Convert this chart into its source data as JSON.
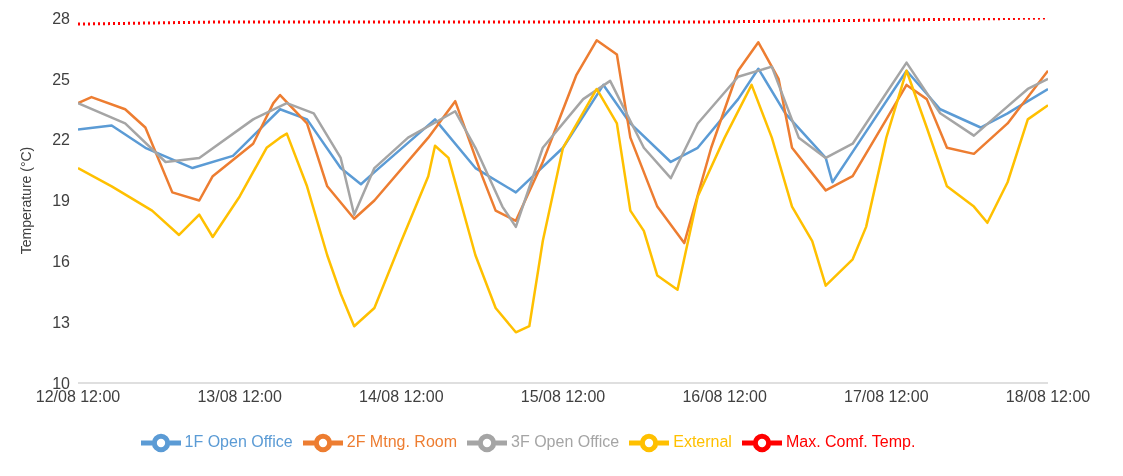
{
  "chart_data": {
    "type": "line",
    "ylabel": "Temperature (°C)",
    "xlim": [
      "--08-12T12:00",
      "--08-18T12:00"
    ],
    "xticks": [
      {
        "value": "--08-12T12:00",
        "label": "12/08 12:00"
      },
      {
        "value": "--08-13T12:00",
        "label": "13/08 12:00"
      },
      {
        "value": "--08-14T12:00",
        "label": "14/08 12:00"
      },
      {
        "value": "--08-15T12:00",
        "label": "15/08 12:00"
      },
      {
        "value": "--08-16T12:00",
        "label": "16/08 12:00"
      },
      {
        "value": "--08-17T12:00",
        "label": "17/08 12:00"
      },
      {
        "value": "--08-18T12:00",
        "label": "18/08 12:00"
      }
    ],
    "ylim": [
      10,
      28
    ],
    "yticks": [
      10,
      13,
      16,
      19,
      22,
      25,
      28
    ],
    "grid": false,
    "legend": "bottom",
    "series": [
      {
        "name": "1F Open Office",
        "color": "#5b9bd5",
        "x": [
          "--08-12T12:00",
          "--08-12T17:00",
          "--08-12T22:00",
          "--08-13T05:00",
          "--08-13T11:00",
          "--08-13T18:00",
          "--08-13T22:00",
          "--08-14T03:00",
          "--08-14T06:00",
          "--08-14T08:00",
          "--08-14T17:00",
          "--08-14T23:00",
          "--08-15T05:00",
          "--08-15T12:00",
          "--08-15T18:00",
          "--08-15T22:00",
          "--08-16T04:00",
          "--08-16T08:00",
          "--08-16T14:00",
          "--08-16T17:00",
          "--08-16T21:00",
          "--08-17T03:00",
          "--08-17T04:00",
          "--08-17T07:00",
          "--08-17T15:00",
          "--08-17T20:00",
          "--08-18T02:00",
          "--08-18T06:00",
          "--08-18T12:00"
        ],
        "values": [
          22.5,
          22.7,
          21.6,
          20.6,
          21.2,
          23.5,
          23.0,
          20.6,
          19.8,
          20.4,
          23.0,
          20.6,
          19.4,
          21.6,
          24.7,
          22.8,
          20.9,
          21.6,
          24.0,
          25.5,
          23.3,
          21.1,
          19.9,
          21.4,
          25.4,
          23.5,
          22.6,
          23.3,
          24.5
        ]
      },
      {
        "name": "2F Mtng. Room",
        "color": "#ed7d31",
        "x": [
          "--08-12T12:00",
          "--08-12T14:00",
          "--08-12T19:00",
          "--08-12T22:00",
          "--08-13T02:00",
          "--08-13T06:00",
          "--08-13T08:00",
          "--08-13T14:00",
          "--08-13T17:00",
          "--08-13T18:00",
          "--08-13T22:00",
          "--08-14T01:00",
          "--08-14T05:00",
          "--08-14T08:00",
          "--08-14T16:00",
          "--08-14T20:00",
          "--08-15T00:00",
          "--08-15T02:00",
          "--08-15T05:00",
          "--08-15T09:00",
          "--08-15T14:00",
          "--08-15T17:00",
          "--08-15T20:00",
          "--08-15T22:00",
          "--08-16T02:00",
          "--08-16T06:00",
          "--08-16T10:00",
          "--08-16T14:00",
          "--08-16T17:00",
          "--08-16T20:00",
          "--08-16T22:00",
          "--08-17T03:00",
          "--08-17T07:00",
          "--08-17T12:00",
          "--08-17T15:00",
          "--08-17T18:00",
          "--08-17T21:00",
          "--08-18T01:00",
          "--08-18T06:00",
          "--08-18T12:00"
        ],
        "values": [
          23.8,
          24.1,
          23.5,
          22.6,
          19.4,
          19.0,
          20.2,
          21.8,
          23.8,
          24.2,
          22.8,
          19.7,
          18.1,
          19.0,
          22.1,
          23.9,
          20.2,
          18.5,
          18.0,
          20.9,
          25.2,
          26.9,
          26.2,
          22.1,
          18.7,
          16.9,
          21.6,
          25.4,
          26.8,
          25.0,
          21.6,
          19.5,
          20.2,
          23.0,
          24.7,
          24.0,
          21.6,
          21.3,
          22.8,
          25.4
        ]
      },
      {
        "name": "3F Open  Office",
        "color": "#a5a5a5",
        "x": [
          "--08-12T12:00",
          "--08-12T19:00",
          "--08-13T01:00",
          "--08-13T06:00",
          "--08-13T14:00",
          "--08-13T19:00",
          "--08-13T23:00",
          "--08-14T03:00",
          "--08-14T05:00",
          "--08-14T08:00",
          "--08-14T13:00",
          "--08-14T20:00",
          "--08-14T23:00",
          "--08-15T03:00",
          "--08-15T05:00",
          "--08-15T09:00",
          "--08-15T15:00",
          "--08-15T19:00",
          "--08-16T00:00",
          "--08-16T04:00",
          "--08-16T08:00",
          "--08-16T14:00",
          "--08-16T19:00",
          "--08-16T23:00",
          "--08-17T03:00",
          "--08-17T07:00",
          "--08-17T12:00",
          "--08-17T15:00",
          "--08-17T20:00",
          "--08-18T01:00",
          "--08-18T09:00",
          "--08-18T12:00"
        ],
        "values": [
          23.8,
          22.8,
          20.9,
          21.1,
          23.0,
          23.8,
          23.3,
          21.1,
          18.3,
          20.6,
          22.1,
          23.4,
          21.6,
          18.7,
          17.7,
          21.6,
          24.0,
          24.9,
          21.6,
          20.1,
          22.8,
          25.1,
          25.6,
          22.1,
          21.1,
          21.8,
          24.3,
          25.8,
          23.3,
          22.2,
          24.5,
          25.0
        ]
      },
      {
        "name": "External",
        "color": "#ffc000",
        "x": [
          "--08-12T12:00",
          "--08-12T17:00",
          "--08-12T23:00",
          "--08-13T03:00",
          "--08-13T06:00",
          "--08-13T08:00",
          "--08-13T12:00",
          "--08-13T16:00",
          "--08-13T18:00",
          "--08-13T19:00",
          "--08-13T22:00",
          "--08-14T01:00",
          "--08-14T03:00",
          "--08-14T05:00",
          "--08-14T08:00",
          "--08-14T12:00",
          "--08-14T16:00",
          "--08-14T17:00",
          "--08-14T19:00",
          "--08-14T23:00",
          "--08-15T02:00",
          "--08-15T05:00",
          "--08-15T07:00",
          "--08-15T09:00",
          "--08-15T12:00",
          "--08-15T17:00",
          "--08-15T20:00",
          "--08-15T22:00",
          "--08-16T00:00",
          "--08-16T02:00",
          "--08-16T05:00",
          "--08-16T08:00",
          "--08-16T12:00",
          "--08-16T16:00",
          "--08-16T19:00",
          "--08-16T22:00",
          "--08-17T01:00",
          "--08-17T03:00",
          "--08-17T07:00",
          "--08-17T09:00",
          "--08-17T12:00",
          "--08-17T15:00",
          "--08-17T18:00",
          "--08-17T21:00",
          "--08-18T01:00",
          "--08-18T03:00",
          "--08-18T06:00",
          "--08-18T09:00",
          "--08-18T12:00"
        ],
        "values": [
          20.6,
          19.7,
          18.5,
          17.3,
          18.3,
          17.2,
          19.2,
          21.6,
          22.1,
          22.3,
          19.7,
          16.3,
          14.4,
          12.8,
          13.7,
          17.0,
          20.2,
          21.7,
          21.1,
          16.3,
          13.7,
          12.5,
          12.8,
          17.0,
          21.6,
          24.5,
          22.8,
          18.5,
          17.5,
          15.3,
          14.6,
          19.2,
          22.1,
          24.7,
          22.1,
          18.7,
          17.0,
          14.8,
          16.1,
          17.7,
          22.1,
          25.4,
          22.6,
          19.7,
          18.7,
          17.9,
          19.9,
          23.0,
          23.7
        ]
      },
      {
        "name": "Max. Comf. Temp.",
        "color": "#ff0000",
        "line_style": "dotted",
        "x": [
          "--08-12T12:00",
          "--08-13T08:00",
          "--08-15T00:00",
          "--08-16T08:00",
          "--08-17T13:00",
          "--08-18T12:00"
        ],
        "values": [
          27.7,
          27.8,
          27.8,
          27.8,
          27.9,
          28.0
        ]
      }
    ]
  }
}
